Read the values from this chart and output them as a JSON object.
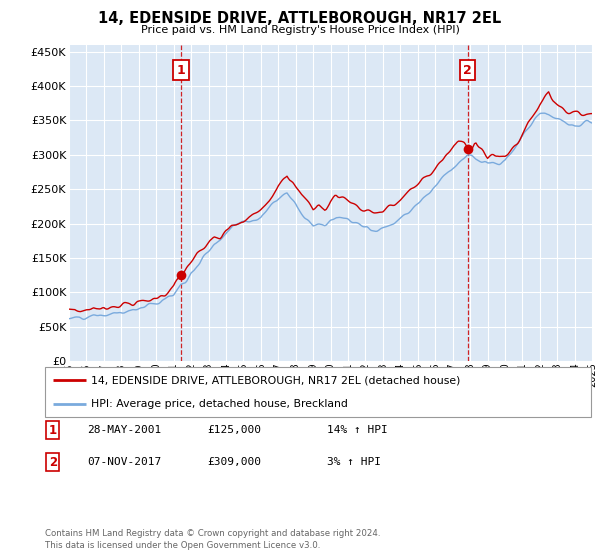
{
  "title": "14, EDENSIDE DRIVE, ATTLEBOROUGH, NR17 2EL",
  "subtitle": "Price paid vs. HM Land Registry's House Price Index (HPI)",
  "ylim": [
    0,
    460000
  ],
  "yticks": [
    0,
    50000,
    100000,
    150000,
    200000,
    250000,
    300000,
    350000,
    400000,
    450000
  ],
  "background_color": "#ffffff",
  "plot_bg_color": "#dce8f5",
  "grid_color": "#ffffff",
  "legend_label_red": "14, EDENSIDE DRIVE, ATTLEBOROUGH, NR17 2EL (detached house)",
  "legend_label_blue": "HPI: Average price, detached house, Breckland",
  "marker1_date": "28-MAY-2001",
  "marker1_price": "£125,000",
  "marker1_hpi": "14% ↑ HPI",
  "marker1_year": 2001.41,
  "marker1_value": 125000,
  "marker2_date": "07-NOV-2017",
  "marker2_price": "£309,000",
  "marker2_hpi": "3% ↑ HPI",
  "marker2_year": 2017.85,
  "marker2_value": 309000,
  "footer_line1": "Contains HM Land Registry data © Crown copyright and database right 2024.",
  "footer_line2": "This data is licensed under the Open Government Licence v3.0.",
  "red_color": "#cc0000",
  "blue_color": "#7aaadd"
}
